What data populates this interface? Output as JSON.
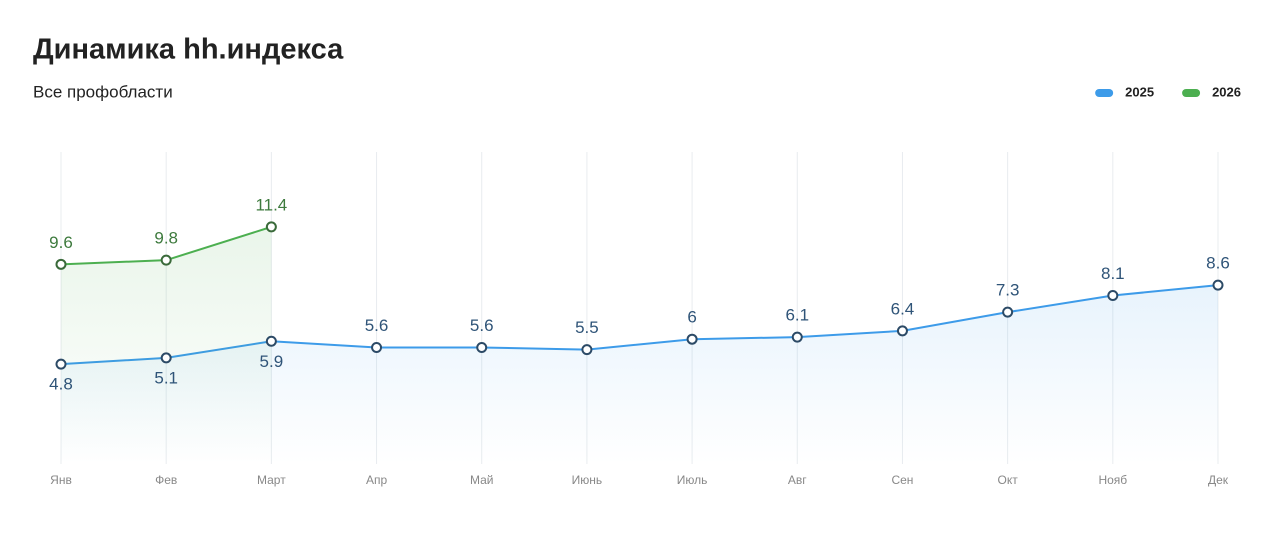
{
  "chart_data": {
    "type": "line",
    "title": "Динамика hh.индекса",
    "subtitle": "Все профобласти",
    "categories": [
      "Янв",
      "Фев",
      "Март",
      "Апр",
      "Май",
      "Июнь",
      "Июль",
      "Авг",
      "Сен",
      "Окт",
      "Нояб",
      "Дек"
    ],
    "series": [
      {
        "name": "2025",
        "color": "#3d9be9",
        "label_color": "#2f5478",
        "marker_color": "#2c4a66",
        "values": [
          4.8,
          5.1,
          5.9,
          5.6,
          5.6,
          5.5,
          6,
          6.1,
          6.4,
          7.3,
          8.1,
          8.6
        ]
      },
      {
        "name": "2026",
        "color": "#4caf50",
        "label_color": "#3d7a3d",
        "marker_color": "#3a6a3a",
        "values": [
          9.6,
          9.8,
          11.4,
          null,
          null,
          null,
          null,
          null,
          null,
          null,
          null,
          null
        ]
      }
    ],
    "ylim": [
      0,
      15
    ],
    "legend": "top-right",
    "grid": true
  }
}
